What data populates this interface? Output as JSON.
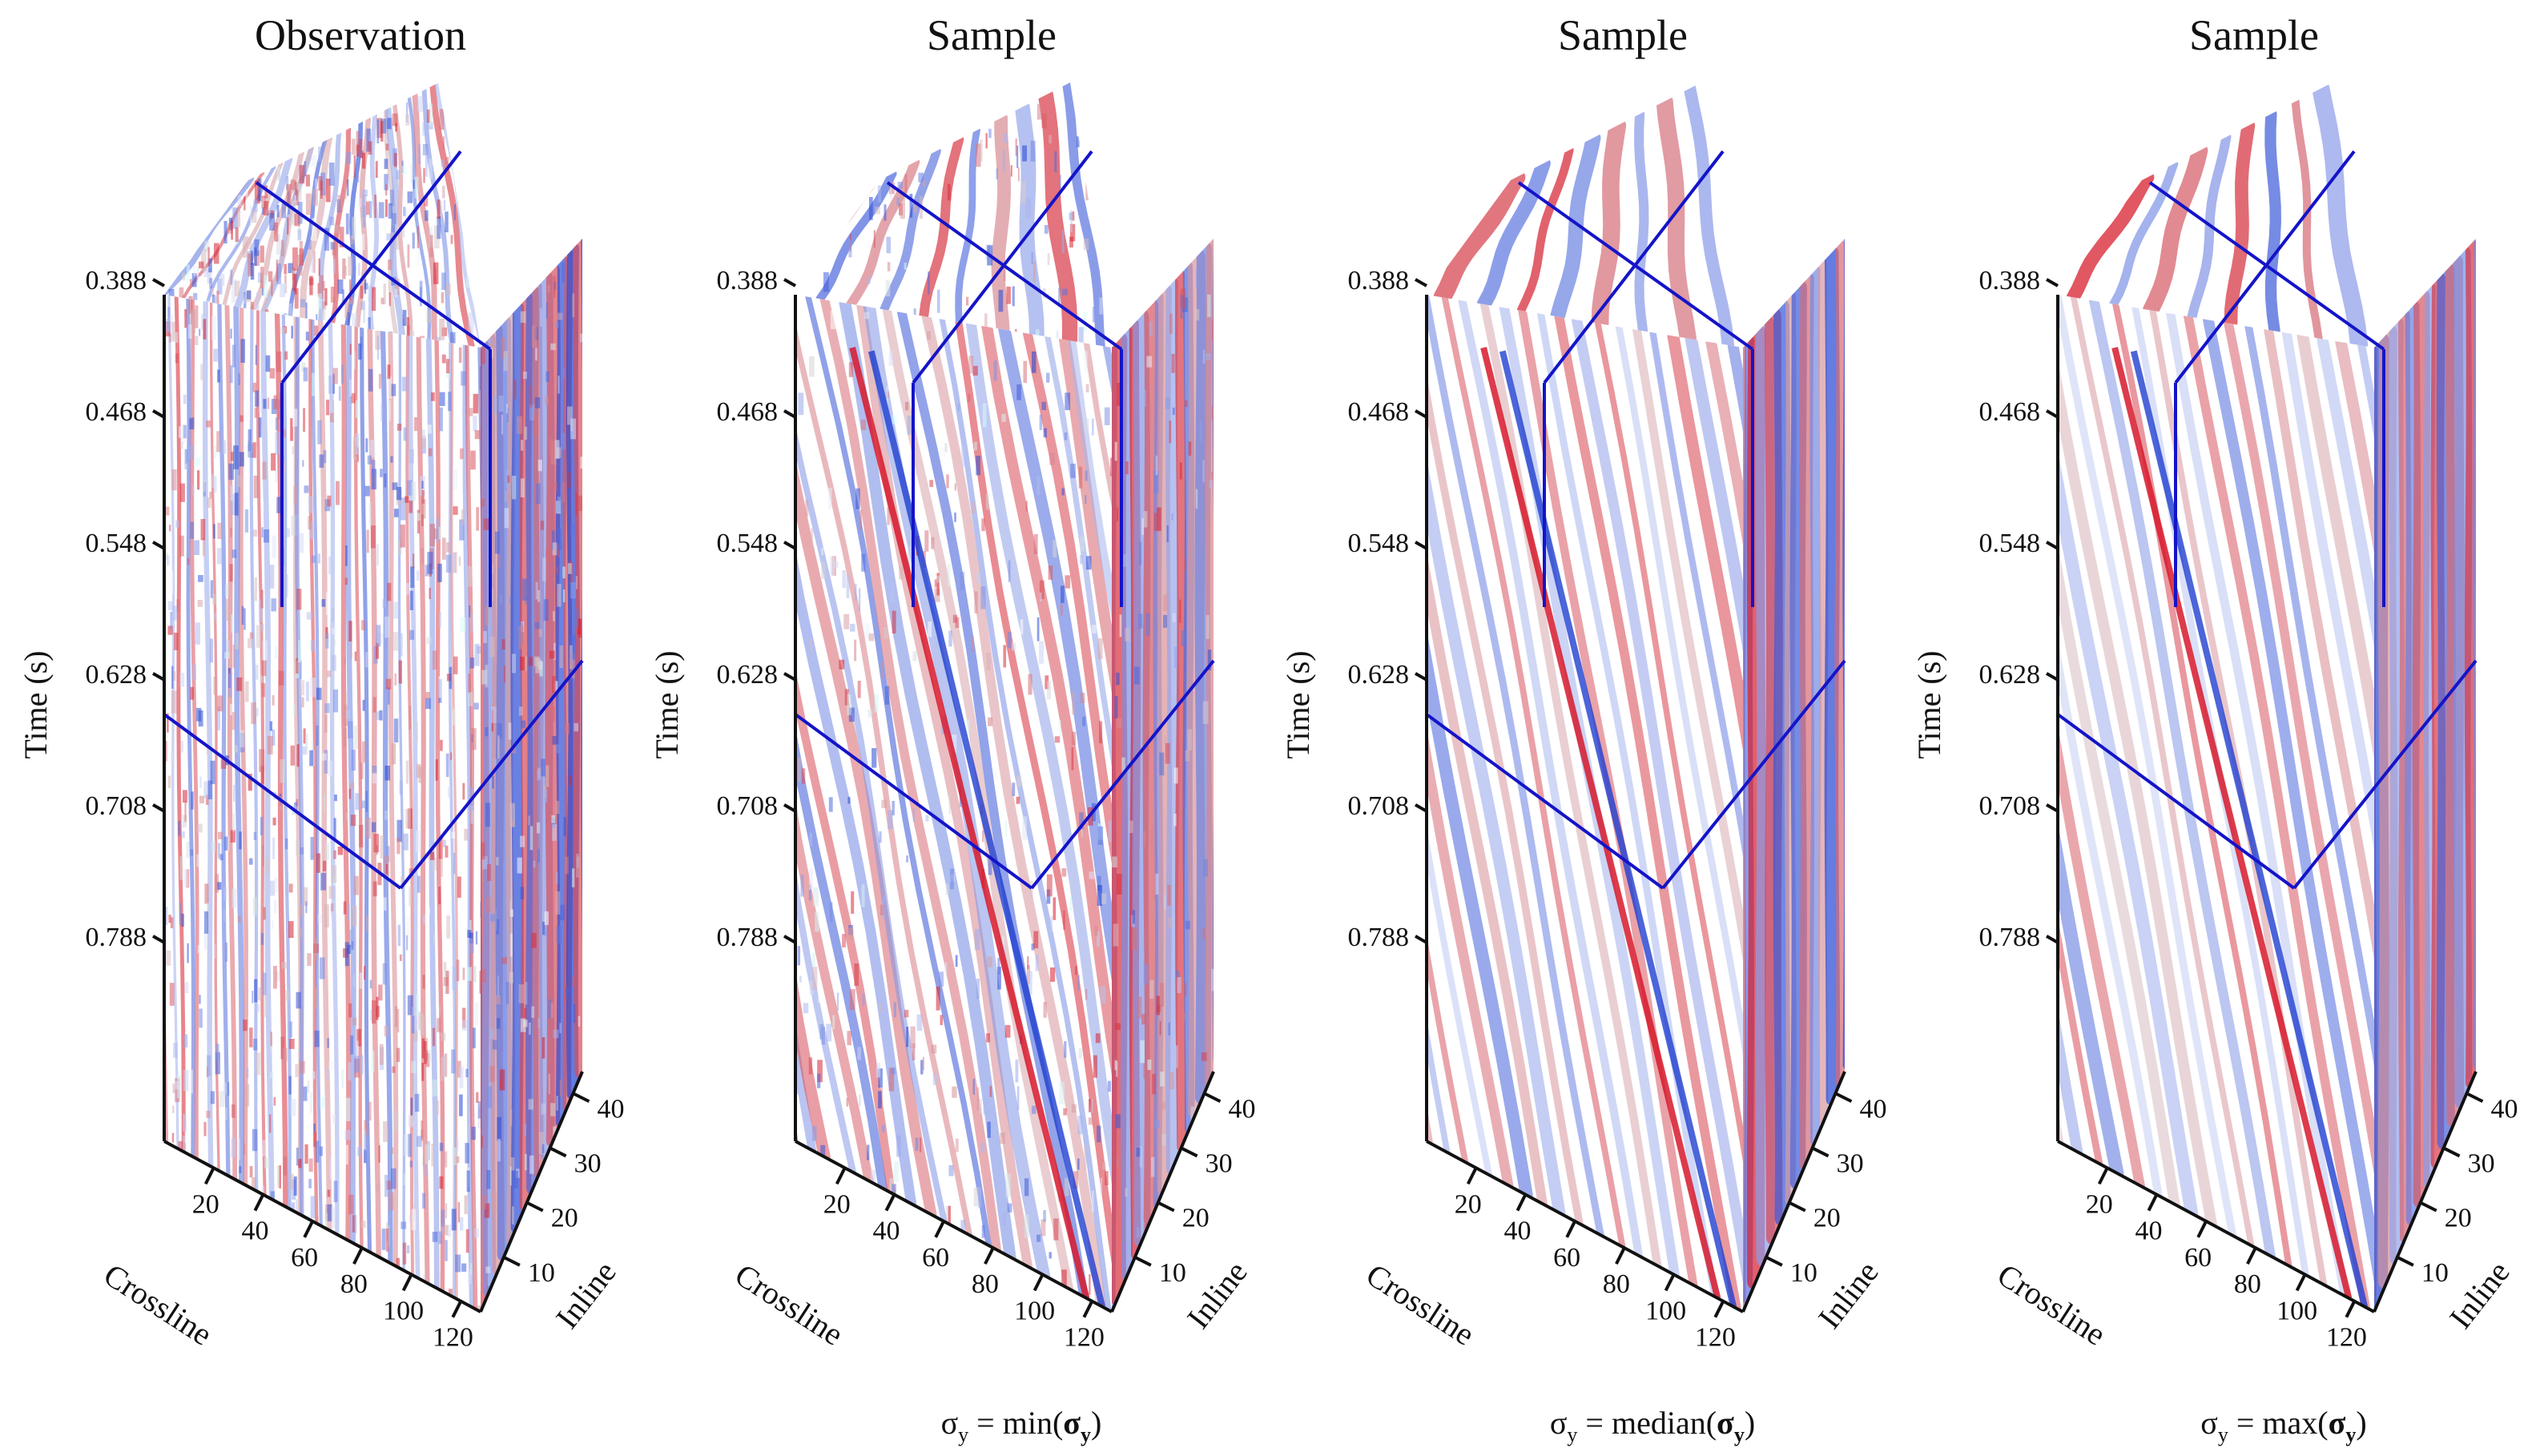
{
  "colors": {
    "positive": "#d7192b",
    "negative": "#1f3fd0",
    "cut_lines": "#1414c8",
    "axes": "#111111",
    "background": "#ffffff"
  },
  "chart_data": [
    {
      "type": "heatmap",
      "render": "3d-seismic-cube",
      "title": "Observation",
      "caption": null,
      "style": "noisy",
      "ylabel": "Time (s)",
      "xlabel_crossline": "Crossline",
      "xlabel_inline": "Inline",
      "time_ticks": [
        "0.388",
        "0.468",
        "0.548",
        "0.628",
        "0.708",
        "0.788"
      ],
      "crossline_ticks": [
        "20",
        "40",
        "60",
        "80",
        "100",
        "120"
      ],
      "inline_ticks": [
        "10",
        "20",
        "30",
        "40"
      ],
      "time_range": [
        0.3,
        0.86
      ],
      "crossline_range": [
        0,
        128
      ],
      "inline_range": [
        0,
        44
      ]
    },
    {
      "type": "heatmap",
      "render": "3d-seismic-cube",
      "title": "Sample",
      "caption": {
        "lhs": "σ",
        "lhs_sub": "y",
        "eq": " = ",
        "fn": "min(",
        "arg": "σ",
        "arg_sub": "y",
        "close": ")"
      },
      "style": "sample-rough",
      "ylabel": "Time (s)",
      "xlabel_crossline": "Crossline",
      "xlabel_inline": "Inline",
      "time_ticks": [
        "0.388",
        "0.468",
        "0.548",
        "0.628",
        "0.708",
        "0.788"
      ],
      "crossline_ticks": [
        "20",
        "40",
        "60",
        "80",
        "100",
        "120"
      ],
      "inline_ticks": [
        "10",
        "20",
        "30",
        "40"
      ],
      "time_range": [
        0.3,
        0.86
      ],
      "crossline_range": [
        0,
        128
      ],
      "inline_range": [
        0,
        44
      ]
    },
    {
      "type": "heatmap",
      "render": "3d-seismic-cube",
      "title": "Sample",
      "caption": {
        "lhs": "σ",
        "lhs_sub": "y",
        "eq": " = ",
        "fn": "median(",
        "arg": "σ",
        "arg_sub": "y",
        "close": ")"
      },
      "style": "sample-smooth",
      "ylabel": "Time (s)",
      "xlabel_crossline": "Crossline",
      "xlabel_inline": "Inline",
      "time_ticks": [
        "0.388",
        "0.468",
        "0.548",
        "0.628",
        "0.708",
        "0.788"
      ],
      "crossline_ticks": [
        "20",
        "40",
        "60",
        "80",
        "100",
        "120"
      ],
      "inline_ticks": [
        "10",
        "20",
        "30",
        "40"
      ],
      "time_range": [
        0.3,
        0.86
      ],
      "crossline_range": [
        0,
        128
      ],
      "inline_range": [
        0,
        44
      ]
    },
    {
      "type": "heatmap",
      "render": "3d-seismic-cube",
      "title": "Sample",
      "caption": {
        "lhs": "σ",
        "lhs_sub": "y",
        "eq": " = ",
        "fn": "max(",
        "arg": "σ",
        "arg_sub": "y",
        "close": ")"
      },
      "style": "sample-smooth",
      "ylabel": "Time (s)",
      "xlabel_crossline": "Crossline",
      "xlabel_inline": "Inline",
      "time_ticks": [
        "0.388",
        "0.468",
        "0.548",
        "0.628",
        "0.708",
        "0.788"
      ],
      "crossline_ticks": [
        "20",
        "40",
        "60",
        "80",
        "100",
        "120"
      ],
      "inline_ticks": [
        "10",
        "20",
        "30",
        "40"
      ],
      "time_range": [
        0.3,
        0.86
      ],
      "crossline_range": [
        0,
        128
      ],
      "inline_range": [
        0,
        44
      ]
    }
  ]
}
